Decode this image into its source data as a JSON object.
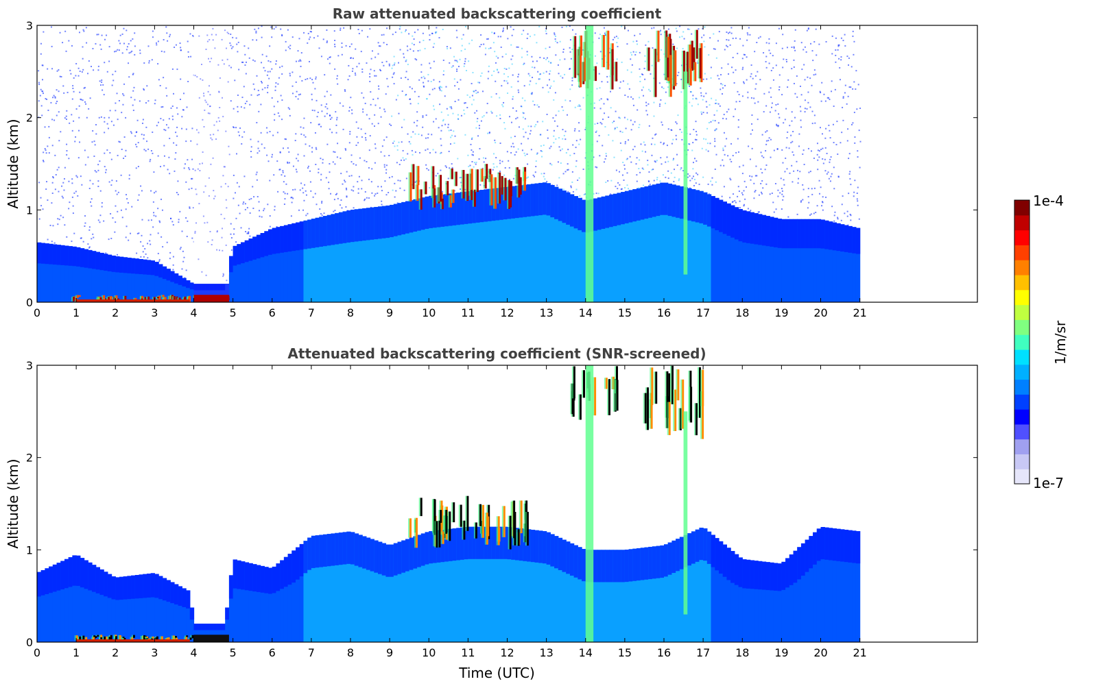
{
  "chart_data": [
    {
      "type": "heatmap",
      "title": "Raw attenuated backscattering coefficient",
      "xlabel": "",
      "ylabel": "Altitude (km)",
      "xlim": [
        0,
        24
      ],
      "ylim": [
        0,
        3
      ],
      "x_ticks": [
        0,
        1,
        2,
        3,
        4,
        5,
        6,
        7,
        8,
        9,
        10,
        11,
        12,
        13,
        14,
        15,
        16,
        17,
        18,
        19,
        20,
        21
      ],
      "y_ticks": [
        0,
        1,
        2,
        3
      ],
      "data_extent_x": [
        0,
        21
      ],
      "aerosol_layer_top_km": [
        [
          0,
          0.65
        ],
        [
          1,
          0.6
        ],
        [
          2,
          0.5
        ],
        [
          3,
          0.45
        ],
        [
          4,
          0.2
        ],
        [
          4.8,
          0.2
        ],
        [
          5,
          0.6
        ],
        [
          6,
          0.8
        ],
        [
          7,
          0.9
        ],
        [
          8,
          1.0
        ],
        [
          9,
          1.05
        ],
        [
          10,
          1.15
        ],
        [
          11,
          1.2
        ],
        [
          12,
          1.25
        ],
        [
          13,
          1.3
        ],
        [
          14,
          1.1
        ],
        [
          15,
          1.2
        ],
        [
          16,
          1.3
        ],
        [
          17,
          1.2
        ],
        [
          18,
          1.0
        ],
        [
          19,
          0.9
        ],
        [
          20,
          0.9
        ],
        [
          21,
          0.8
        ]
      ],
      "cloud_features": [
        {
          "x": [
            9.5,
            12.5
          ],
          "y": [
            1.0,
            1.5
          ],
          "level": "high"
        },
        {
          "x": [
            13.6,
            14.8
          ],
          "y": [
            2.3,
            3.0
          ],
          "level": "high"
        },
        {
          "x": [
            15.5,
            17.0
          ],
          "y": [
            2.2,
            3.0
          ],
          "level": "high"
        },
        {
          "x": [
            0.9,
            4.9
          ],
          "y": [
            0.0,
            0.08
          ],
          "level": "high"
        },
        {
          "x": [
            14.0,
            14.2
          ],
          "y": [
            0.0,
            3.0
          ],
          "level": "medium"
        },
        {
          "x": [
            16.5,
            16.6
          ],
          "y": [
            0.3,
            2.5
          ],
          "level": "medium"
        }
      ],
      "noise_gap_x": [
        4.0,
        4.9
      ],
      "colorscale": [
        "#ededfa",
        "#0000ff",
        "#00a0ff",
        "#00ffff",
        "#80ff80",
        "#ffff00",
        "#ff8000",
        "#ff0000",
        "#800000"
      ]
    },
    {
      "type": "heatmap",
      "title": "Attenuated backscattering coefficient (SNR-screened)",
      "xlabel": "Time (UTC)",
      "ylabel": "Altitude (km)",
      "xlim": [
        0,
        24
      ],
      "ylim": [
        0,
        3
      ],
      "x_ticks": [
        0,
        1,
        2,
        3,
        4,
        5,
        6,
        7,
        8,
        9,
        10,
        11,
        12,
        13,
        14,
        15,
        16,
        17,
        18,
        19,
        20,
        21
      ],
      "y_ticks": [
        0,
        1,
        2,
        3
      ],
      "data_extent_x": [
        0,
        21
      ],
      "aerosol_layer_top_km": [
        [
          0,
          0.75
        ],
        [
          1,
          0.95
        ],
        [
          2,
          0.7
        ],
        [
          3,
          0.75
        ],
        [
          3.9,
          0.55
        ],
        [
          4.0,
          0.2
        ],
        [
          4.8,
          0.2
        ],
        [
          5,
          0.9
        ],
        [
          6,
          0.8
        ],
        [
          7,
          1.15
        ],
        [
          8,
          1.2
        ],
        [
          9,
          1.05
        ],
        [
          10,
          1.2
        ],
        [
          11,
          1.25
        ],
        [
          12,
          1.25
        ],
        [
          13,
          1.2
        ],
        [
          14,
          1.0
        ],
        [
          15,
          1.0
        ],
        [
          16,
          1.05
        ],
        [
          17,
          1.25
        ],
        [
          18,
          0.9
        ],
        [
          19,
          0.85
        ],
        [
          20,
          1.25
        ],
        [
          21,
          1.2
        ]
      ],
      "cloud_features": [
        {
          "x": [
            9.5,
            12.5
          ],
          "y": [
            1.0,
            1.6
          ],
          "level": "high"
        },
        {
          "x": [
            13.6,
            14.8
          ],
          "y": [
            2.4,
            3.0
          ],
          "level": "high"
        },
        {
          "x": [
            15.5,
            17.0
          ],
          "y": [
            2.2,
            3.0
          ],
          "level": "high"
        },
        {
          "x": [
            0.9,
            4.9
          ],
          "y": [
            0.0,
            0.08
          ],
          "level": "high"
        },
        {
          "x": [
            14.0,
            14.2
          ],
          "y": [
            0.0,
            3.0
          ],
          "level": "medium"
        },
        {
          "x": [
            16.5,
            16.6
          ],
          "y": [
            0.3,
            2.5
          ],
          "level": "medium"
        }
      ],
      "colorscale": [
        "#ededfa",
        "#0000ff",
        "#00a0ff",
        "#00ffff",
        "#80ff80",
        "#ffff00",
        "#ff8000",
        "#ff0000",
        "#800000"
      ]
    }
  ],
  "colorbar": {
    "label": "1/m/sr",
    "max_label": "1e-4",
    "min_label": "1e-7",
    "colors": [
      "#e6e6fa",
      "#c8c8f5",
      "#a0a0f0",
      "#5050ff",
      "#0000ff",
      "#0040ff",
      "#0080ff",
      "#00b0ff",
      "#00e0ff",
      "#40ffc0",
      "#80ff80",
      "#c0ff40",
      "#ffff00",
      "#ffc000",
      "#ff8000",
      "#ff4000",
      "#ff0000",
      "#c00000",
      "#800000"
    ]
  }
}
